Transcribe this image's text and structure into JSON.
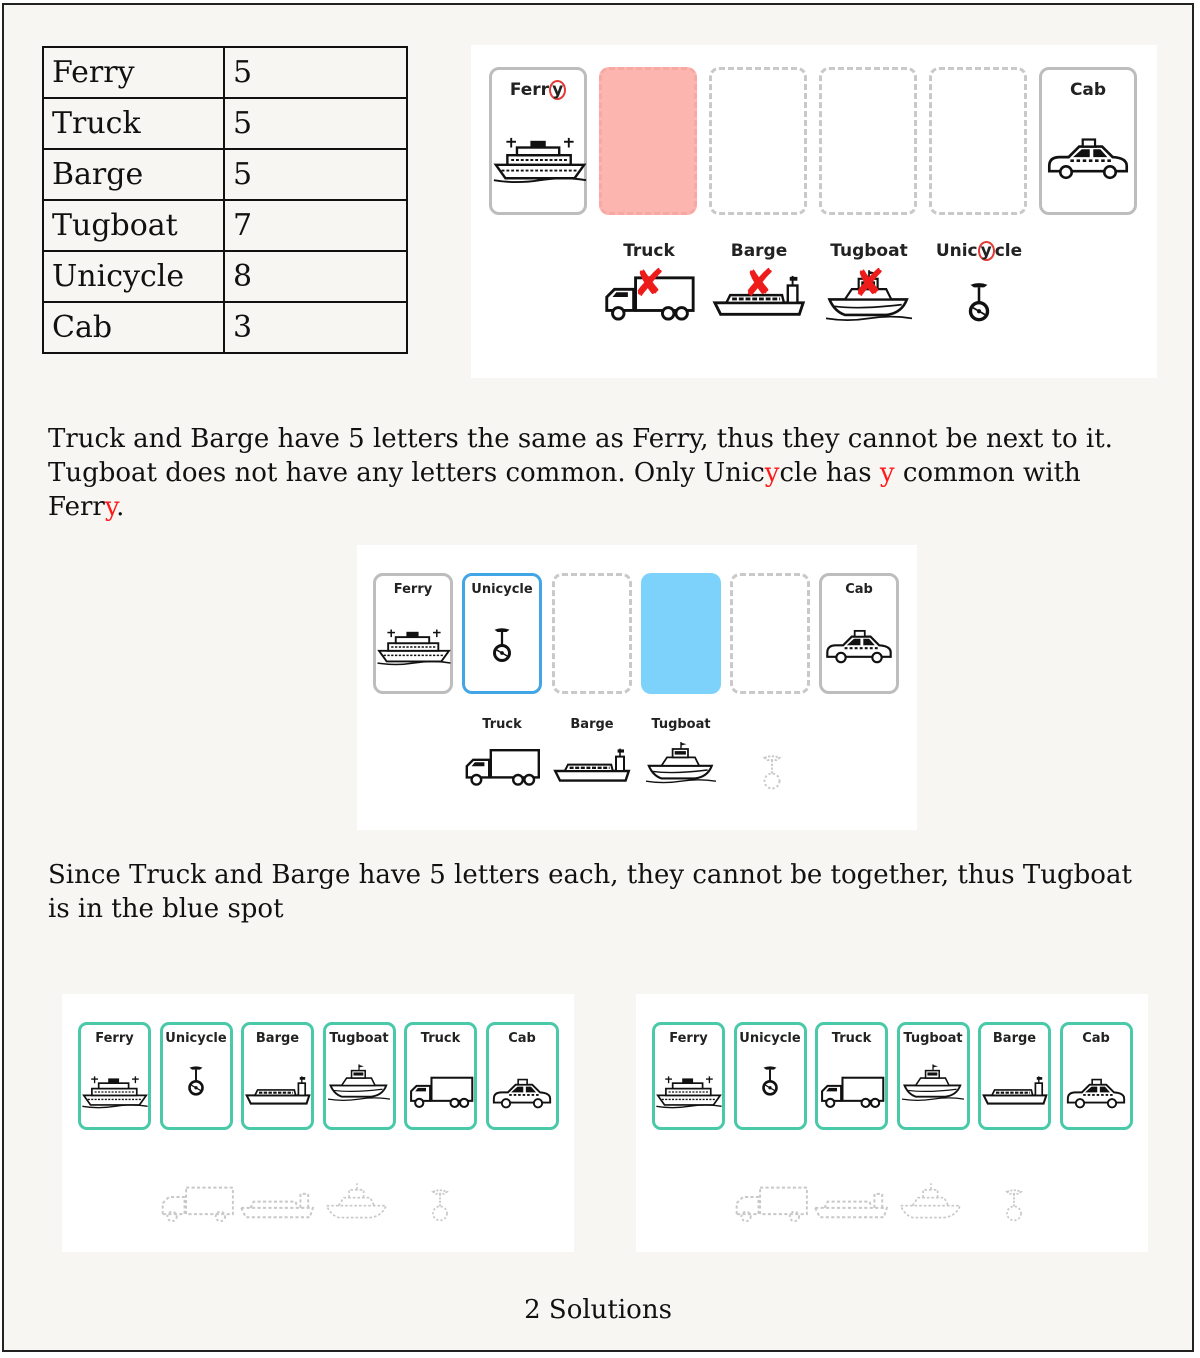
{
  "table": {
    "rows": [
      {
        "name": "Ferry",
        "len": "5"
      },
      {
        "name": "Truck",
        "len": "5"
      },
      {
        "name": "Barge",
        "len": "5"
      },
      {
        "name": "Tugboat",
        "len": "7"
      },
      {
        "name": "Unicycle",
        "len": "8"
      },
      {
        "name": "Cab",
        "len": "3"
      }
    ]
  },
  "fig1": {
    "ferry_a": "Ferr",
    "ferry_b": "y",
    "cab": "Cab",
    "truck": "Truck",
    "barge": "Barge",
    "tugboat": "Tugboat",
    "uni_a": "Unic",
    "uni_b": "y",
    "uni_c": "cle",
    "cross": "✘"
  },
  "text1": {
    "line_a": "Truck and Barge have 5 letters the same as Ferry, thus they cannot be next to it. Tugboat does not have any letters common. Only Unic",
    "y1": "y",
    "line_b": "cle has ",
    "y2": "y",
    "line_c": " common with Ferr",
    "y3": "y",
    "line_d": "."
  },
  "fig2": {
    "ferry": "Ferry",
    "unicycle": "Unicycle",
    "cab": "Cab",
    "truck": "Truck",
    "barge": "Barge",
    "tugboat": "Tugboat"
  },
  "text2": "Since Truck and Barge have 5 letters each, they cannot be together, thus Tugboat is in the blue spot",
  "solution1": [
    "Ferry",
    "Unicycle",
    "Barge",
    "Tugboat",
    "Truck",
    "Cab"
  ],
  "solution2": [
    "Ferry",
    "Unicycle",
    "Truck",
    "Tugboat",
    "Barge",
    "Cab"
  ],
  "footer": "2 Solutions",
  "colors": {
    "red_slot": "#fdb5b0",
    "blue_slot": "#7dd2fb",
    "solution_border": "#49c9a8",
    "highlight_red": "#ff1a1a"
  },
  "icons": {
    "Ferry": "ferry-icon",
    "Unicycle": "unicycle-icon",
    "Barge": "barge-icon",
    "Tugboat": "tugboat-icon",
    "Truck": "truck-icon",
    "Cab": "cab-icon"
  }
}
